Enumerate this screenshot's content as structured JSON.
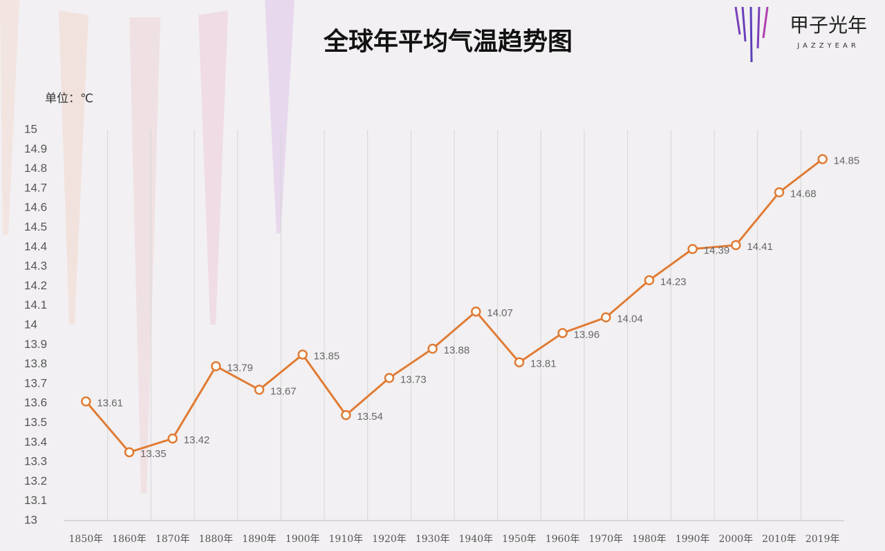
{
  "chart_data": {
    "type": "line",
    "title": "全球年平均气温趋势图",
    "unit_label": "单位：℃",
    "logo": {
      "name": "甲子光年",
      "subtitle": "JAZZYEAR"
    },
    "categories": [
      "1850年",
      "1860年",
      "1870年",
      "1880年",
      "1890年",
      "1900年",
      "1910年",
      "1920年",
      "1930年",
      "1940年",
      "1950年",
      "1960年",
      "1970年",
      "1980年",
      "1990年",
      "2000年",
      "2010年",
      "2019年"
    ],
    "series": [
      {
        "name": "全球年平均气温",
        "color": "#e07b34",
        "values": [
          13.61,
          13.35,
          13.42,
          13.79,
          13.67,
          13.85,
          13.54,
          13.73,
          13.88,
          14.07,
          13.81,
          13.96,
          14.04,
          14.23,
          14.39,
          14.41,
          14.68,
          14.85
        ]
      }
    ],
    "ylim": [
      13,
      15
    ],
    "yticks": [
      13,
      13.1,
      13.2,
      13.3,
      13.4,
      13.5,
      13.6,
      13.7,
      13.8,
      13.9,
      14,
      14.1,
      14.2,
      14.3,
      14.4,
      14.5,
      14.6,
      14.7,
      14.8,
      14.9,
      15
    ]
  }
}
